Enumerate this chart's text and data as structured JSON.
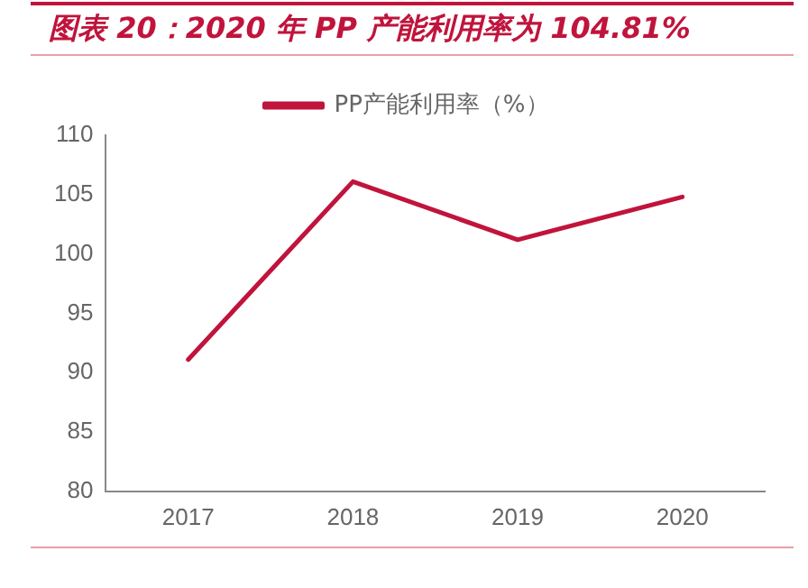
{
  "chart_data": {
    "type": "line",
    "title": "图表 20：2020 年 PP 产能利用率为 104.81%",
    "categories": [
      "2017",
      "2018",
      "2019",
      "2020"
    ],
    "series": [
      {
        "name": "PP产能利用率（%）",
        "color": "#c0143c",
        "values": [
          91.1,
          106.1,
          101.2,
          104.81
        ]
      }
    ],
    "ylim": [
      80,
      110
    ],
    "yticks": [
      80,
      85,
      90,
      95,
      100,
      105,
      110
    ],
    "grid": false,
    "legend": "top",
    "marker": "none",
    "line_style": "solid"
  }
}
